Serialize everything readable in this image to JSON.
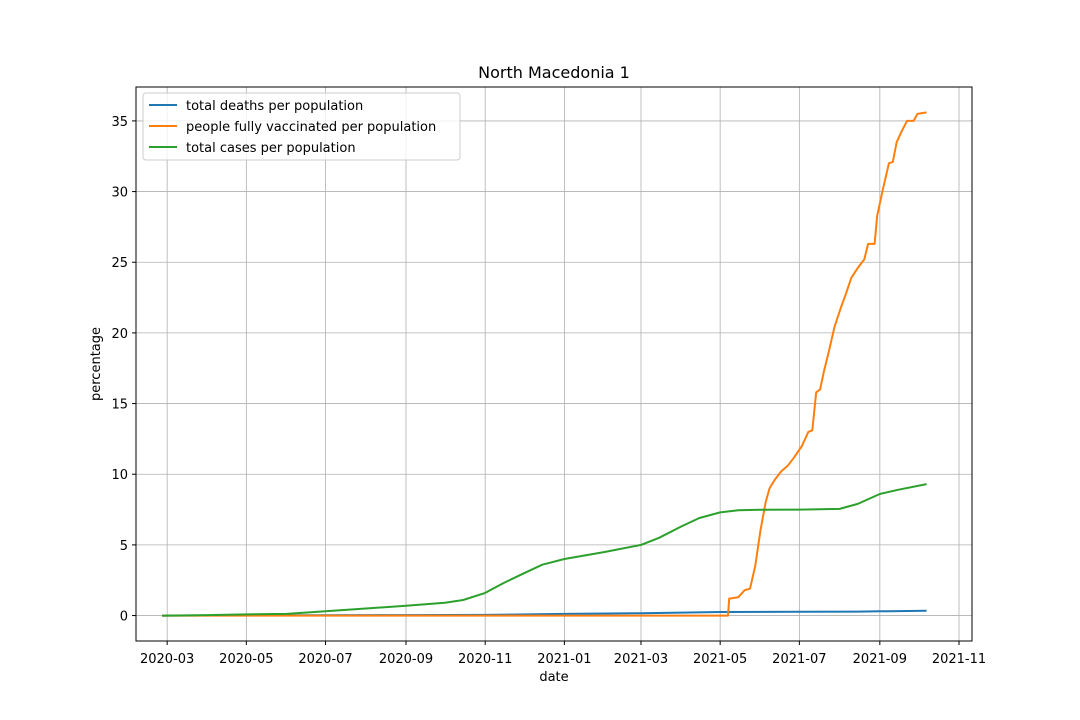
{
  "chart_data": {
    "type": "line",
    "title": "North Macedonia 1",
    "xlabel": "date",
    "ylabel": "percentage",
    "grid": true,
    "legend_position": "top-left",
    "xlim": [
      "2020-02-06",
      "2021-11-11"
    ],
    "ylim": [
      -1.8,
      37.4
    ],
    "x_ticks": [
      "2020-03-01",
      "2020-05-01",
      "2020-07-01",
      "2020-09-01",
      "2020-11-01",
      "2021-01-01",
      "2021-03-01",
      "2021-05-01",
      "2021-07-01",
      "2021-09-01",
      "2021-11-01"
    ],
    "x_tick_labels": [
      "2020-03",
      "2020-05",
      "2020-07",
      "2020-09",
      "2020-11",
      "2021-01",
      "2021-03",
      "2021-05",
      "2021-07",
      "2021-09",
      "2021-11"
    ],
    "y_ticks": [
      0,
      5,
      10,
      15,
      20,
      25,
      30,
      35
    ],
    "y_tick_labels": [
      "0",
      "5",
      "10",
      "15",
      "20",
      "25",
      "30",
      "35"
    ],
    "series": [
      {
        "name": "total deaths per population",
        "color": "#1f77b4",
        "points": [
          [
            "2020-02-26",
            0.0
          ],
          [
            "2020-05-01",
            0.01
          ],
          [
            "2020-07-01",
            0.02
          ],
          [
            "2020-09-01",
            0.03
          ],
          [
            "2020-11-01",
            0.05
          ],
          [
            "2021-01-01",
            0.12
          ],
          [
            "2021-03-01",
            0.17
          ],
          [
            "2021-05-01",
            0.25
          ],
          [
            "2021-07-01",
            0.27
          ],
          [
            "2021-08-15",
            0.28
          ],
          [
            "2021-09-01",
            0.3
          ],
          [
            "2021-10-07",
            0.34
          ]
        ]
      },
      {
        "name": "people fully vaccinated per population",
        "color": "#ff7f0e",
        "points": [
          [
            "2020-02-26",
            0.0
          ],
          [
            "2021-05-07",
            0.0
          ],
          [
            "2021-05-08",
            1.2
          ],
          [
            "2021-05-15",
            1.3
          ],
          [
            "2021-05-20",
            1.8
          ],
          [
            "2021-05-24",
            1.9
          ],
          [
            "2021-05-28",
            3.5
          ],
          [
            "2021-06-01",
            6.0
          ],
          [
            "2021-06-05",
            8.0
          ],
          [
            "2021-06-08",
            9.0
          ],
          [
            "2021-06-12",
            9.6
          ],
          [
            "2021-06-17",
            10.2
          ],
          [
            "2021-06-22",
            10.6
          ],
          [
            "2021-06-27",
            11.2
          ],
          [
            "2021-07-03",
            12.0
          ],
          [
            "2021-07-08",
            13.0
          ],
          [
            "2021-07-11",
            13.1
          ],
          [
            "2021-07-14",
            15.8
          ],
          [
            "2021-07-17",
            16.0
          ],
          [
            "2021-07-20",
            17.3
          ],
          [
            "2021-07-24",
            18.8
          ],
          [
            "2021-07-28",
            20.4
          ],
          [
            "2021-08-02",
            21.8
          ],
          [
            "2021-08-06",
            22.8
          ],
          [
            "2021-08-10",
            23.9
          ],
          [
            "2021-08-15",
            24.6
          ],
          [
            "2021-08-20",
            25.2
          ],
          [
            "2021-08-23",
            26.3
          ],
          [
            "2021-08-28",
            26.3
          ],
          [
            "2021-08-30",
            28.3
          ],
          [
            "2021-09-03",
            30.0
          ],
          [
            "2021-09-08",
            32.0
          ],
          [
            "2021-09-11",
            32.1
          ],
          [
            "2021-09-14",
            33.5
          ],
          [
            "2021-09-18",
            34.3
          ],
          [
            "2021-09-22",
            35.0
          ],
          [
            "2021-09-27",
            35.0
          ],
          [
            "2021-09-30",
            35.5
          ],
          [
            "2021-10-07",
            35.6
          ]
        ]
      },
      {
        "name": "total cases per population",
        "color": "#2ca02c",
        "points": [
          [
            "2020-02-26",
            0.0
          ],
          [
            "2020-04-01",
            0.03
          ],
          [
            "2020-05-01",
            0.08
          ],
          [
            "2020-06-01",
            0.12
          ],
          [
            "2020-07-01",
            0.3
          ],
          [
            "2020-08-01",
            0.5
          ],
          [
            "2020-09-01",
            0.7
          ],
          [
            "2020-10-01",
            0.9
          ],
          [
            "2020-10-15",
            1.1
          ],
          [
            "2020-11-01",
            1.6
          ],
          [
            "2020-11-15",
            2.3
          ],
          [
            "2020-12-01",
            3.0
          ],
          [
            "2020-12-15",
            3.6
          ],
          [
            "2021-01-01",
            4.0
          ],
          [
            "2021-02-01",
            4.5
          ],
          [
            "2021-03-01",
            5.0
          ],
          [
            "2021-03-15",
            5.5
          ],
          [
            "2021-04-01",
            6.3
          ],
          [
            "2021-04-15",
            6.9
          ],
          [
            "2021-05-01",
            7.3
          ],
          [
            "2021-05-15",
            7.45
          ],
          [
            "2021-06-01",
            7.48
          ],
          [
            "2021-07-01",
            7.5
          ],
          [
            "2021-08-01",
            7.55
          ],
          [
            "2021-08-15",
            7.9
          ],
          [
            "2021-09-01",
            8.6
          ],
          [
            "2021-09-15",
            8.9
          ],
          [
            "2021-10-07",
            9.3
          ]
        ]
      }
    ]
  }
}
